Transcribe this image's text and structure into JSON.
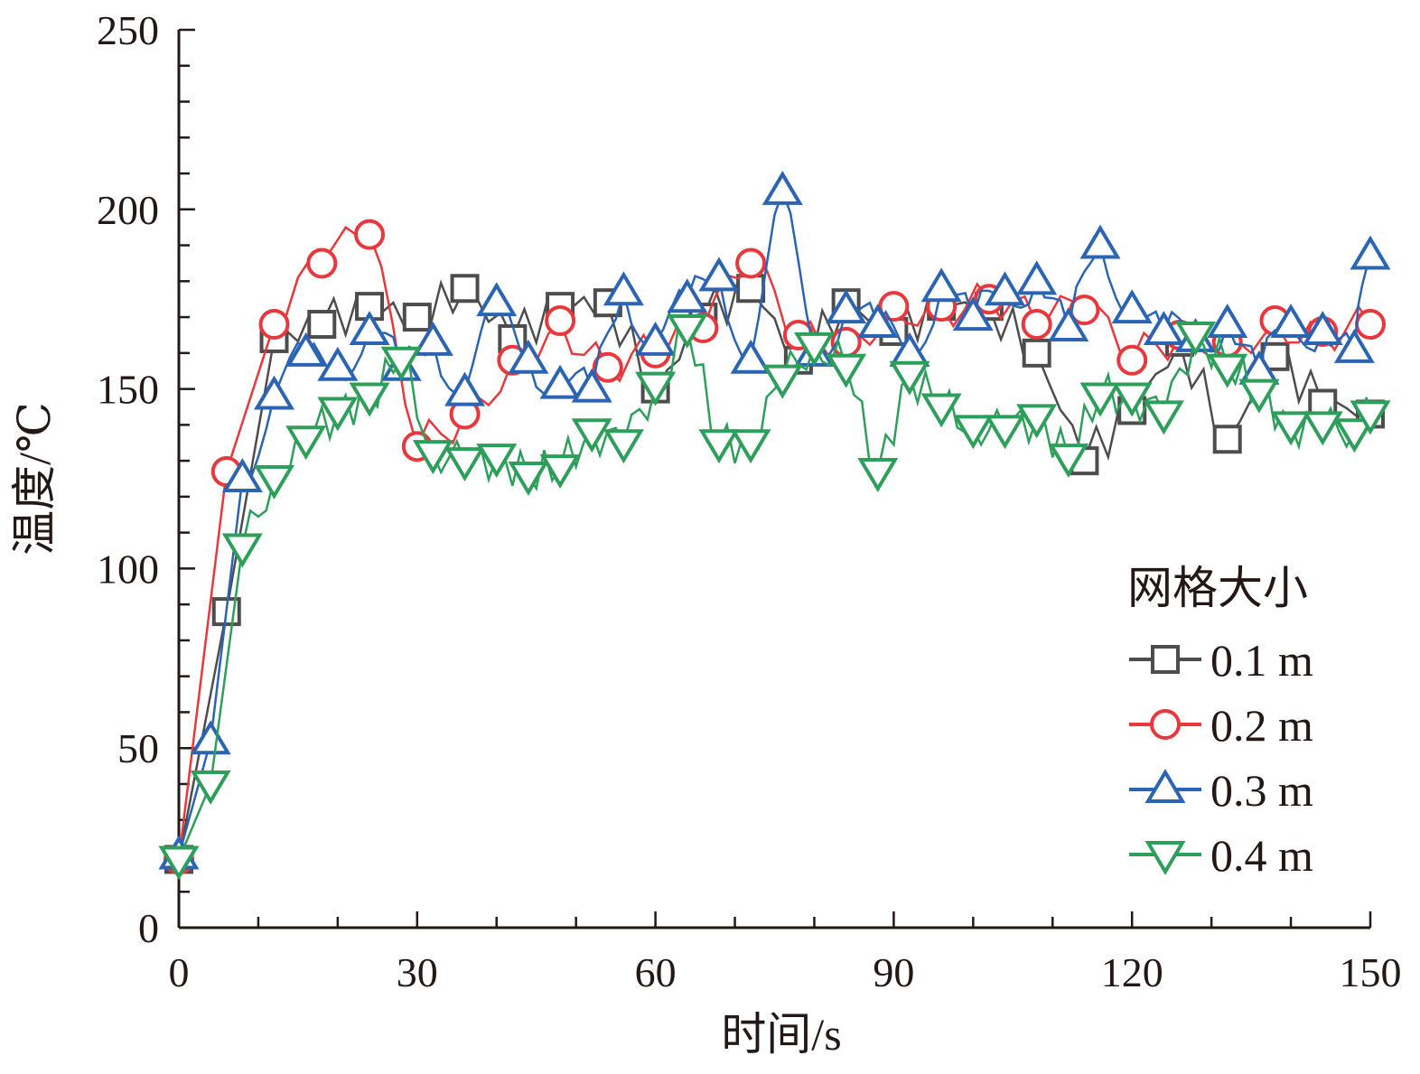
{
  "chart_data": {
    "type": "line",
    "title": "",
    "xlabel": "时间/s",
    "ylabel": "温度/℃",
    "xlim": [
      0,
      150
    ],
    "ylim": [
      0,
      250
    ],
    "xticks": [
      "0",
      "30",
      "60",
      "90",
      "120",
      "150"
    ],
    "yticks": [
      "0",
      "50",
      "100",
      "150",
      "200",
      "250"
    ],
    "grid": false,
    "legend": {
      "title": "网格大小",
      "position": "right-middle"
    },
    "series": [
      {
        "name": "0.1 m",
        "color": "#4d4d4d",
        "marker": "square",
        "x": [
          0,
          6,
          12,
          18,
          24,
          30,
          36,
          42,
          48,
          54,
          60,
          66,
          72,
          78,
          84,
          90,
          96,
          102,
          108,
          114,
          120,
          126,
          132,
          138,
          144,
          150
        ],
        "y": [
          19,
          88,
          164,
          168,
          173,
          170,
          178,
          164,
          173,
          174,
          150,
          170,
          178,
          158,
          174,
          166,
          173,
          173,
          160,
          130,
          144,
          163,
          136,
          159,
          146,
          143
        ]
      },
      {
        "name": "0.2 m",
        "color": "#e8383d",
        "marker": "circle",
        "x": [
          0,
          6,
          12,
          18,
          24,
          30,
          36,
          42,
          48,
          54,
          60,
          66,
          72,
          78,
          84,
          90,
          96,
          102,
          108,
          114,
          120,
          126,
          132,
          138,
          144,
          150
        ],
        "y": [
          19,
          127,
          168,
          185,
          193,
          134,
          143,
          158,
          169,
          156,
          160,
          167,
          185,
          165,
          163,
          173,
          173,
          175,
          168,
          172,
          158,
          165,
          163,
          169,
          166,
          168
        ]
      },
      {
        "name": "0.3 m",
        "color": "#2a64b3",
        "marker": "triangle-up",
        "x": [
          0,
          4,
          8,
          12,
          16,
          20,
          24,
          28,
          32,
          36,
          40,
          44,
          48,
          52,
          56,
          60,
          64,
          68,
          72,
          76,
          80,
          84,
          88,
          92,
          96,
          100,
          104,
          108,
          112,
          116,
          120,
          124,
          128,
          132,
          136,
          140,
          144,
          148,
          150
        ],
        "y": [
          20,
          52,
          125,
          148,
          160,
          156,
          166,
          156,
          163,
          149,
          174,
          158,
          151,
          150,
          177,
          163,
          175,
          181,
          158,
          205,
          160,
          172,
          168,
          160,
          178,
          170,
          177,
          180,
          167,
          190,
          172,
          166,
          164,
          168,
          155,
          168,
          166,
          161,
          187
        ]
      },
      {
        "name": "0.4 m",
        "color": "#2e9e5b",
        "marker": "triangle-down",
        "x": [
          0,
          4,
          8,
          12,
          16,
          20,
          24,
          28,
          32,
          36,
          40,
          44,
          48,
          52,
          56,
          60,
          64,
          68,
          72,
          76,
          80,
          84,
          88,
          92,
          96,
          100,
          104,
          108,
          112,
          116,
          120,
          124,
          128,
          132,
          136,
          140,
          144,
          148,
          150
        ],
        "y": [
          19,
          40,
          106,
          125,
          136,
          144,
          148,
          158,
          132,
          130,
          131,
          126,
          128,
          138,
          135,
          151,
          167,
          135,
          135,
          153,
          162,
          156,
          127,
          154,
          145,
          139,
          139,
          142,
          131,
          148,
          148,
          143,
          165,
          156,
          149,
          140,
          140,
          138,
          143
        ]
      }
    ]
  }
}
